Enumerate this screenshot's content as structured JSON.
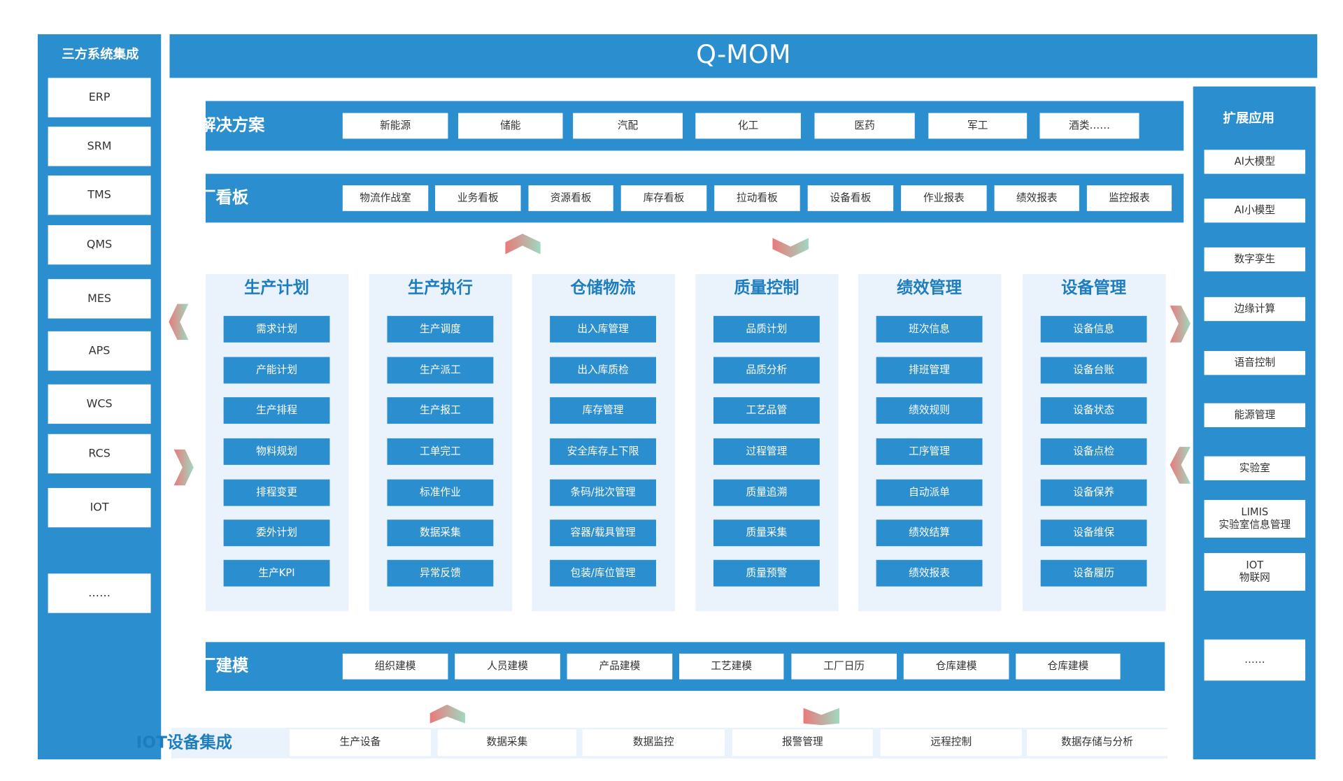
{
  "title": "Q-MOM",
  "left": {
    "title": "三方系统集成",
    "items": [
      "ERP",
      "SRM",
      "TMS",
      "QMS",
      "MES",
      "APS",
      "WCS",
      "RCS",
      "IOT",
      "……"
    ]
  },
  "right": {
    "title": "扩展应用",
    "items": [
      "AI大模型",
      "AI小模型",
      "数字孪生",
      "边缘计算",
      "语音控制",
      "能源管理",
      "实验室",
      [
        "LIMIS",
        "实验室信息管理"
      ],
      [
        "IOT",
        "物联网"
      ],
      "……"
    ]
  },
  "industry": {
    "title": "行业解决方案",
    "items": [
      "新能源",
      "储能",
      "汽配",
      "化工",
      "医药",
      "军工",
      "酒类……"
    ]
  },
  "board": {
    "title": "工厂看板",
    "items": [
      "物流作战室",
      "业务看板",
      "资源看板",
      "库存看板",
      "拉动看板",
      "设备看板",
      "作业报表",
      "绩效报表",
      "监控报表"
    ]
  },
  "modules": [
    {
      "title": "生产计划",
      "items": [
        "需求计划",
        "产能计划",
        "生产排程",
        "物料规划",
        "排程变更",
        "委外计划",
        "生产KPI"
      ]
    },
    {
      "title": "生产执行",
      "items": [
        "生产调度",
        "生产派工",
        "生产报工",
        "工单完工",
        "标准作业",
        "数据采集",
        "异常反馈"
      ]
    },
    {
      "title": "仓储物流",
      "items": [
        "出入库管理",
        "出入库质检",
        "库存管理",
        "安全库存上下限",
        "条码/批次管理",
        "容器/载具管理",
        "包装/库位管理"
      ]
    },
    {
      "title": "质量控制",
      "items": [
        "品质计划",
        "品质分析",
        "工艺品管",
        "过程管理",
        "质量追溯",
        "质量采集",
        "质量预警"
      ]
    },
    {
      "title": "绩效管理",
      "items": [
        "班次信息",
        "排班管理",
        "绩效规则",
        "工序管理",
        "自动派单",
        "绩效结算",
        "绩效报表"
      ]
    },
    {
      "title": "设备管理",
      "items": [
        "设备信息",
        "设备台账",
        "设备状态",
        "设备点检",
        "设备保养",
        "设备维保",
        "设备履历"
      ]
    }
  ],
  "modeling": {
    "title": "工厂建模",
    "items": [
      "组织建模",
      "人员建模",
      "产品建模",
      "工艺建模",
      "工厂日历",
      "仓库建模",
      "仓库建模"
    ]
  },
  "iot": {
    "title": "IOT设备集成",
    "items": [
      "生产设备",
      "数据采集",
      "数据监控",
      "报警管理",
      "远程控制",
      "数据存储与分析"
    ]
  }
}
